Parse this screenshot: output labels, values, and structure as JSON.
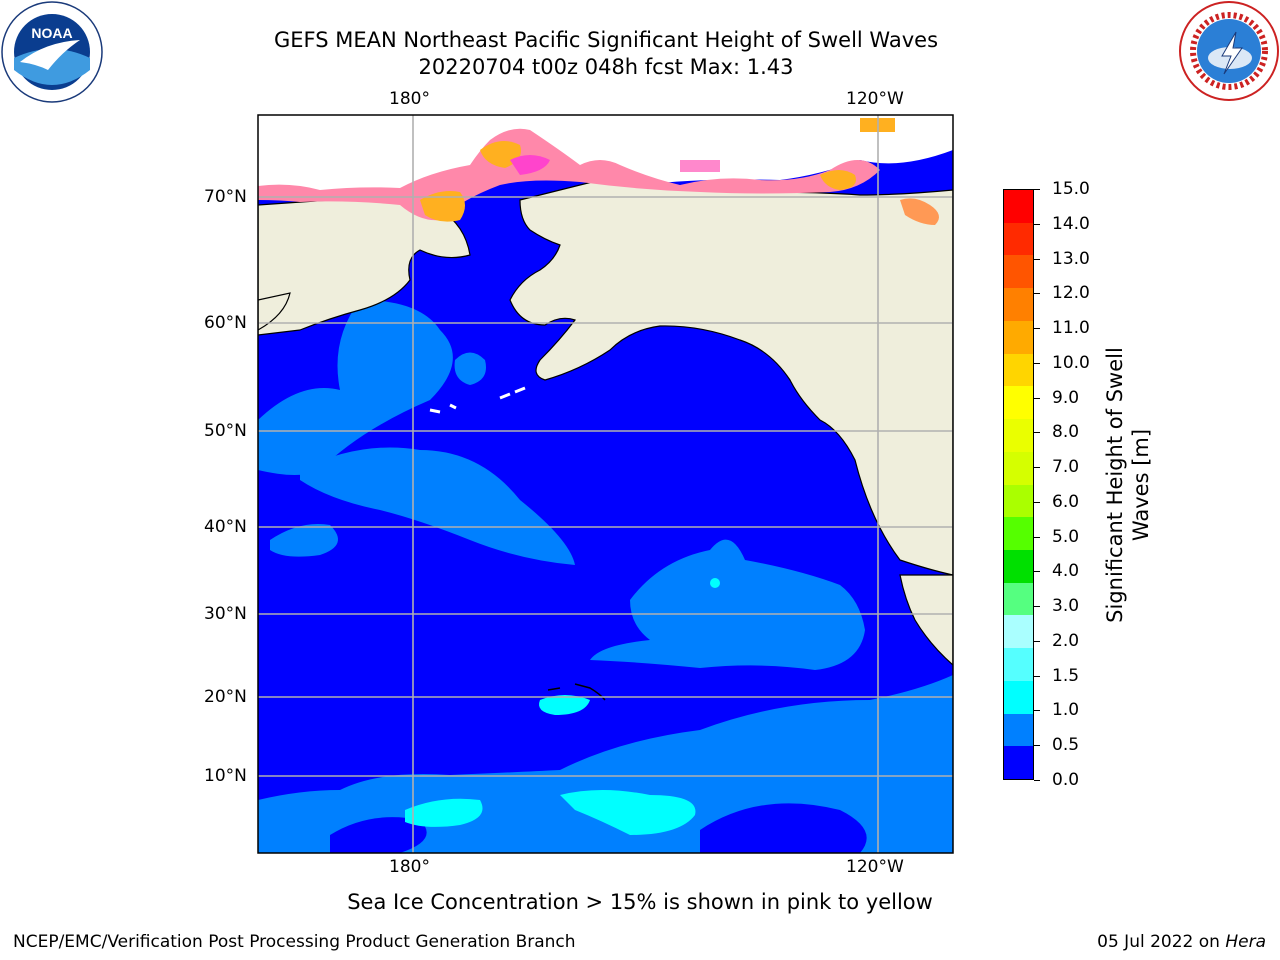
{
  "header": {
    "title_line1": "GEFS MEAN Northeast Pacific Significant Height of Swell Waves",
    "title_line2": "20220704 t00z 048h fcst   Max: 1.43"
  },
  "logos": {
    "left": "NOAA",
    "left_ring": "NATIONAL OCEANIC AND ATMOSPHERIC ADMINISTRATION · U.S. DEPARTMENT OF COMMERCE",
    "right_ring": "NATIONAL WEATHER SERVICE"
  },
  "map": {
    "lon_labels_top": [
      "180°",
      "120°W"
    ],
    "lon_labels_bottom": [
      "180°",
      "120°W"
    ],
    "lat_labels": [
      "70°N",
      "60°N",
      "50°N",
      "40°N",
      "30°N",
      "20°N",
      "10°N"
    ],
    "colors": {
      "ocean_low": "#0000ff",
      "ocean_mid": "#0080ff",
      "ocean_high": "#00ffff",
      "land": "#efeedc",
      "grid": "#b0b0b0"
    }
  },
  "colorbar": {
    "title_line1": "Significant Height of Swell",
    "title_line2": "Waves [m]",
    "labels": [
      "15.0",
      "14.0",
      "13.0",
      "12.0",
      "11.0",
      "10.0",
      "9.0",
      "8.0",
      "7.0",
      "6.0",
      "5.0",
      "4.0",
      "3.0",
      "2.0",
      "1.5",
      "1.0",
      "0.5",
      "0.0"
    ],
    "colors_top_to_bottom": [
      "#ff0000",
      "#ff2a00",
      "#ff5500",
      "#ff8000",
      "#ffaa00",
      "#ffd500",
      "#ffff00",
      "#eaff00",
      "#d5ff00",
      "#aaff00",
      "#55ff00",
      "#00e000",
      "#55ff80",
      "#aaffff",
      "#55ffff",
      "#00ffff",
      "#0080ff",
      "#0000ff"
    ]
  },
  "caption": "Sea Ice Concentration > 15% is shown in pink to yellow",
  "footer": {
    "left": "NCEP/EMC/Verification Post Processing Product Generation Branch",
    "right_prefix": "05 Jul 2022 on ",
    "right_host": "Hera"
  }
}
